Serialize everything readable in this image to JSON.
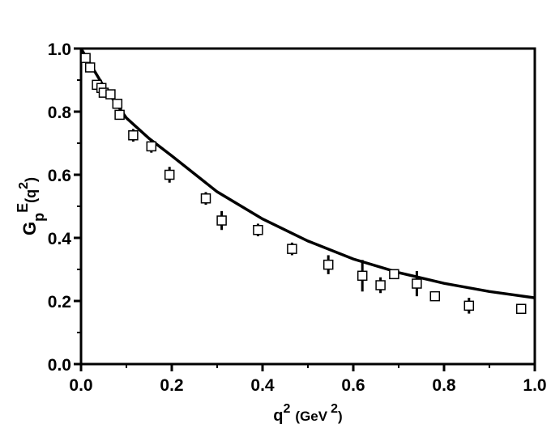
{
  "chart_data": {
    "type": "scatter",
    "xlabel": [
      "q",
      "2",
      "(GeV",
      "2",
      ")"
    ],
    "ylabel": [
      "G",
      "p",
      "E",
      "(q",
      "2",
      ")"
    ],
    "xlim": [
      0,
      1.0
    ],
    "ylim": [
      0,
      1.0
    ],
    "xticks": [
      {
        "value": 0,
        "label": "0.0"
      },
      {
        "value": 0.2,
        "label": "0.2"
      },
      {
        "value": 0.4,
        "label": "0.4"
      },
      {
        "value": 0.6,
        "label": "0.6"
      },
      {
        "value": 0.8,
        "label": "0.8"
      },
      {
        "value": 1.0,
        "label": "1.0"
      }
    ],
    "yticks": [
      {
        "value": 0,
        "label": "0.0"
      },
      {
        "value": 0.2,
        "label": "0.2"
      },
      {
        "value": 0.4,
        "label": "0.4"
      },
      {
        "value": 0.6,
        "label": "0.6"
      },
      {
        "value": 0.8,
        "label": "0.8"
      },
      {
        "value": 1.0,
        "label": "1.0"
      }
    ],
    "xminorticks": [
      0.1,
      0.3,
      0.5,
      0.7,
      0.9
    ],
    "yminorticks": [
      0.1,
      0.3,
      0.5,
      0.7,
      0.9
    ],
    "color": "#000000",
    "points": {
      "x": [
        0.01,
        0.02,
        0.035,
        0.045,
        0.05,
        0.065,
        0.08,
        0.085,
        0.115,
        0.155,
        0.195,
        0.275,
        0.31,
        0.39,
        0.465,
        0.545,
        0.62,
        0.66,
        0.69,
        0.74,
        0.78,
        0.855,
        0.97
      ],
      "y": [
        0.97,
        0.94,
        0.885,
        0.875,
        0.86,
        0.855,
        0.825,
        0.79,
        0.725,
        0.69,
        0.6,
        0.525,
        0.455,
        0.425,
        0.365,
        0.315,
        0.28,
        0.25,
        0.285,
        0.255,
        0.215,
        0.185,
        0.175
      ],
      "yerr": [
        0.01,
        0.01,
        0.015,
        0.01,
        0.01,
        0.01,
        0.01,
        0.01,
        0.02,
        0.02,
        0.025,
        0.02,
        0.03,
        0.02,
        0.02,
        0.03,
        0.05,
        0.025,
        0.01,
        0.04,
        0.01,
        0.025,
        0.01
      ]
    },
    "curve": {
      "x": [
        0,
        0.05,
        0.1,
        0.15,
        0.2,
        0.3,
        0.4,
        0.5,
        0.6,
        0.7,
        0.8,
        0.9,
        1.0
      ],
      "y": [
        1.0,
        0.88,
        0.78,
        0.715,
        0.66,
        0.546,
        0.46,
        0.39,
        0.333,
        0.29,
        0.256,
        0.23,
        0.21
      ]
    }
  }
}
